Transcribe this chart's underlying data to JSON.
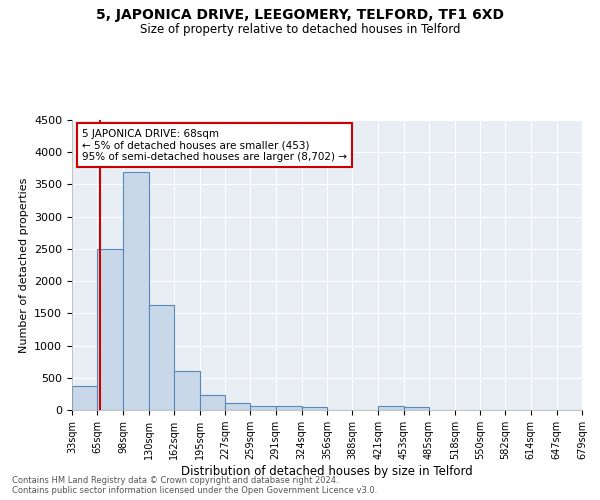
{
  "title": "5, JAPONICA DRIVE, LEEGOMERY, TELFORD, TF1 6XD",
  "subtitle": "Size of property relative to detached houses in Telford",
  "xlabel": "Distribution of detached houses by size in Telford",
  "ylabel": "Number of detached properties",
  "bin_edges": [
    33,
    65,
    98,
    130,
    162,
    195,
    227,
    259,
    291,
    324,
    356,
    388,
    421,
    453,
    485,
    518,
    550,
    582,
    614,
    647,
    679
  ],
  "bin_labels": [
    "33sqm",
    "65sqm",
    "98sqm",
    "130sqm",
    "162sqm",
    "195sqm",
    "227sqm",
    "259sqm",
    "291sqm",
    "324sqm",
    "356sqm",
    "388sqm",
    "421sqm",
    "453sqm",
    "485sqm",
    "518sqm",
    "550sqm",
    "582sqm",
    "614sqm",
    "647sqm",
    "679sqm"
  ],
  "bar_heights": [
    375,
    2500,
    3700,
    1630,
    600,
    240,
    110,
    60,
    60,
    50,
    0,
    0,
    60,
    50,
    0,
    0,
    0,
    0,
    0,
    0
  ],
  "bar_color": "#c8d8e8",
  "bar_edge_color": "#5588bb",
  "red_line_x": 68,
  "annotation_title": "5 JAPONICA DRIVE: 68sqm",
  "annotation_line1": "← 5% of detached houses are smaller (453)",
  "annotation_line2": "95% of semi-detached houses are larger (8,702) →",
  "annotation_box_color": "#ffffff",
  "annotation_box_edge_color": "#cc0000",
  "red_line_color": "#cc0000",
  "ylim": [
    0,
    4500
  ],
  "background_color": "#e8eef4",
  "footer_line1": "Contains HM Land Registry data © Crown copyright and database right 2024.",
  "footer_line2": "Contains public sector information licensed under the Open Government Licence v3.0."
}
